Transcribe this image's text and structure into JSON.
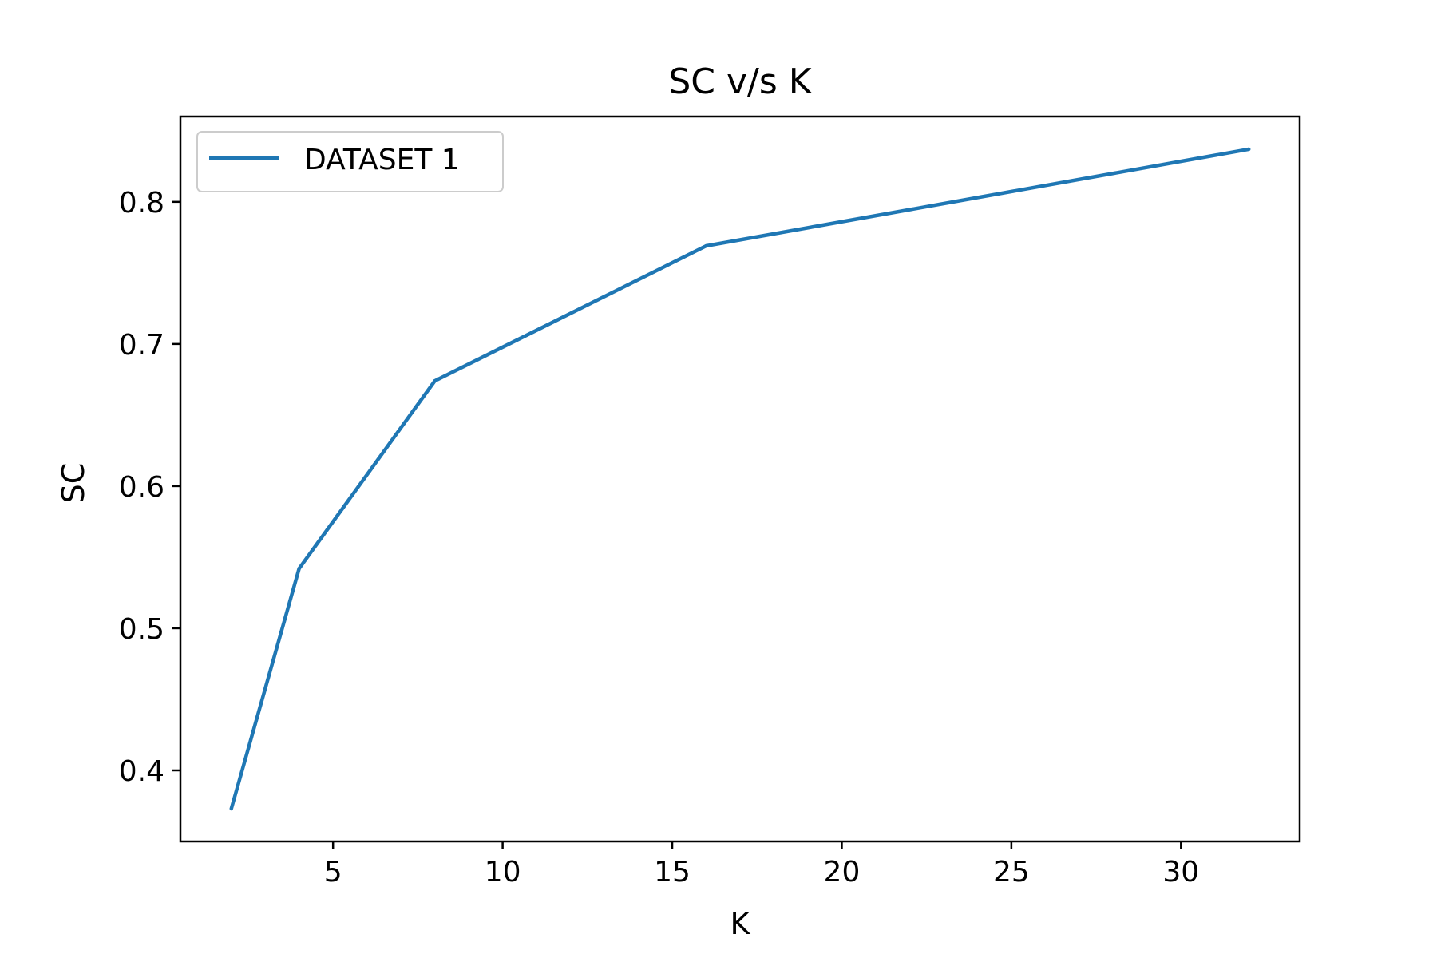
{
  "chart_data": {
    "type": "line",
    "title": "SC v/s K",
    "xlabel": "K",
    "ylabel": "SC",
    "xlim": [
      0.5,
      33.5
    ],
    "ylim": [
      0.35,
      0.86
    ],
    "xticks": [
      5,
      10,
      15,
      20,
      25,
      30
    ],
    "xtick_labels": [
      "5",
      "10",
      "15",
      "20",
      "25",
      "30"
    ],
    "yticks": [
      0.4,
      0.5,
      0.6,
      0.7,
      0.8
    ],
    "ytick_labels": [
      "0.4",
      "0.5",
      "0.6",
      "0.7",
      "0.8"
    ],
    "grid": false,
    "legend_position": "upper-left",
    "series": [
      {
        "name": "DATASET 1",
        "color": "#1f77b4",
        "x": [
          2,
          4,
          8,
          16,
          32
        ],
        "y": [
          0.373,
          0.542,
          0.674,
          0.769,
          0.837
        ]
      }
    ]
  }
}
